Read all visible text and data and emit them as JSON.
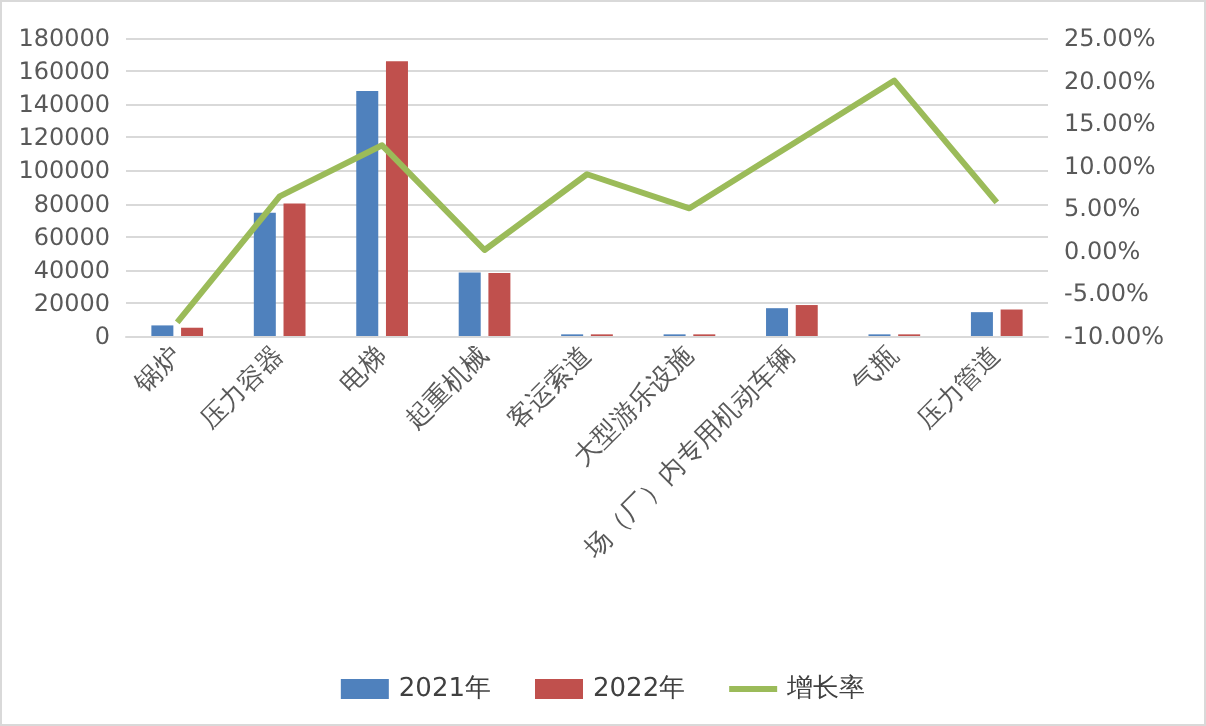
{
  "chart_data": {
    "type": "bar",
    "categories": [
      "锅炉",
      "压力容器",
      "电梯",
      "起重机械",
      "客运索道",
      "大型游乐设施",
      "场（厂）内专用机动车辆",
      "气瓶",
      "压力管道"
    ],
    "series": [
      {
        "name": "2021年",
        "color": "#4f81bd",
        "values": [
          6400,
          74400,
          148000,
          38400,
          1000,
          1000,
          16800,
          1000,
          14400
        ]
      },
      {
        "name": "2022年",
        "color": "#c0504d",
        "values": [
          5000,
          80000,
          166000,
          38000,
          1000,
          1000,
          18700,
          1000,
          16000
        ]
      },
      {
        "name": "增长率",
        "type": "line",
        "axis": "y2",
        "color": "#9bbb59",
        "values": [
          -8.4,
          6.4,
          12.4,
          0.1,
          9.0,
          5.0,
          12.5,
          20.0,
          5.7
        ]
      }
    ],
    "ylim": [
      0,
      180000
    ],
    "yticks": [
      0,
      20000,
      40000,
      60000,
      80000,
      100000,
      120000,
      140000,
      160000,
      180000
    ],
    "y2lim": [
      -10,
      25
    ],
    "y2ticks": [
      {
        "value": -10,
        "label": "-10.00%"
      },
      {
        "value": -5,
        "label": "-5.00%"
      },
      {
        "value": 0,
        "label": "0.00%"
      },
      {
        "value": 5,
        "label": "5.00%"
      },
      {
        "value": 10,
        "label": "10.00%"
      },
      {
        "value": 15,
        "label": "15.00%"
      },
      {
        "value": 20,
        "label": "20.00%"
      },
      {
        "value": 25,
        "label": "25.00%"
      }
    ],
    "grid": "y",
    "legend": "bottom",
    "marker": "none"
  }
}
